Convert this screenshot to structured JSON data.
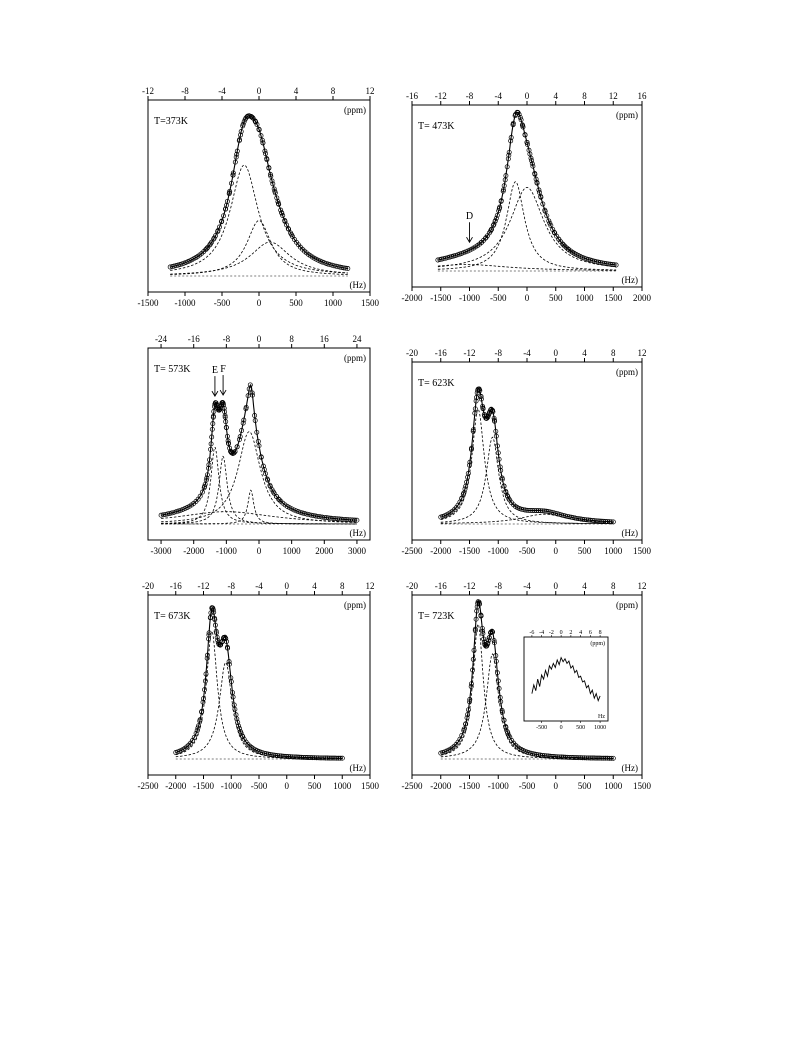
{
  "chart_data": [
    {
      "type": "line",
      "temperature_label": "T=373K",
      "top_axis_unit": "(ppm)",
      "bottom_axis_unit": "(Hz)",
      "hz_ticks": [
        -1500,
        -1000,
        -500,
        0,
        500,
        1000,
        1500
      ],
      "ppm_ticks": [
        -12,
        -8,
        -4,
        0,
        4,
        8,
        12
      ],
      "hz_range": [
        -1500,
        1500
      ],
      "ppm_range": [
        -12,
        12
      ],
      "fit_components": [
        {
          "center": -200,
          "width": 230,
          "amp": 0.72
        },
        {
          "center": 0,
          "width": 200,
          "amp": 0.36
        },
        {
          "center": 150,
          "width": 330,
          "amp": 0.22
        }
      ],
      "data_range": [
        -1200,
        1200
      ],
      "annotations": []
    },
    {
      "type": "line",
      "temperature_label": "T= 473K",
      "top_axis_unit": "(ppm)",
      "bottom_axis_unit": "(Hz)",
      "hz_ticks": [
        -2000,
        -1500,
        -1000,
        -500,
        0,
        500,
        1000,
        1500,
        2000
      ],
      "ppm_ticks": [
        -16,
        -12,
        -8,
        -4,
        0,
        4,
        8,
        12,
        16
      ],
      "hz_range": [
        -2000,
        2000
      ],
      "ppm_range": [
        -16,
        16
      ],
      "fit_components": [
        {
          "center": -1050,
          "width": 900,
          "amp": 0.045
        },
        {
          "center": -200,
          "width": 190,
          "amp": 0.62
        },
        {
          "center": 0,
          "width": 360,
          "amp": 0.58
        }
      ],
      "data_range": [
        -1550,
        1550
      ],
      "annotations": [
        {
          "text": "D",
          "x": -1000
        }
      ]
    },
    {
      "type": "line",
      "temperature_label": "T= 573K",
      "top_axis_unit": "(ppm)",
      "bottom_axis_unit": "(Hz)",
      "hz_ticks": [
        -3000,
        -2000,
        -1000,
        0,
        1000,
        2000,
        3000
      ],
      "ppm_ticks": [
        -24,
        -16,
        -8,
        0,
        8,
        16,
        24
      ],
      "hz_range": [
        -3400,
        3400
      ],
      "ppm_range": [
        -27.2,
        27.2
      ],
      "fit_components": [
        {
          "center": -1350,
          "width": 150,
          "amp": 0.5
        },
        {
          "center": -1100,
          "width": 150,
          "amp": 0.44
        },
        {
          "center": -300,
          "width": 420,
          "amp": 0.6
        },
        {
          "center": -250,
          "width": 110,
          "amp": 0.22
        },
        {
          "center": -1000,
          "width": 1800,
          "amp": 0.08
        }
      ],
      "data_range": [
        -3000,
        3000
      ],
      "annotations": [
        {
          "text": "E",
          "x": -1350
        },
        {
          "text": "F",
          "x": -1100
        }
      ]
    },
    {
      "type": "line",
      "temperature_label": "T= 623K",
      "top_axis_unit": "(ppm)",
      "bottom_axis_unit": "(Hz)",
      "hz_ticks": [
        -2500,
        -2000,
        -1500,
        -1000,
        -500,
        0,
        500,
        1000,
        1500
      ],
      "ppm_ticks": [
        -20,
        -16,
        -12,
        -8,
        -4,
        0,
        4,
        8,
        12
      ],
      "hz_range": [
        -2500,
        1500
      ],
      "ppm_range": [
        -20,
        12
      ],
      "fit_components": [
        {
          "center": -1350,
          "width": 130,
          "amp": 0.82
        },
        {
          "center": -1100,
          "width": 130,
          "amp": 0.62
        },
        {
          "center": -200,
          "width": 500,
          "amp": 0.07
        }
      ],
      "data_range": [
        -2000,
        1000
      ],
      "annotations": []
    },
    {
      "type": "line",
      "temperature_label": "T= 673K",
      "top_axis_unit": "(ppm)",
      "bottom_axis_unit": "(Hz)",
      "hz_ticks": [
        -2500,
        -2000,
        -1500,
        -1000,
        -500,
        0,
        500,
        1000,
        1500
      ],
      "ppm_ticks": [
        -20,
        -16,
        -12,
        -8,
        -4,
        0,
        4,
        8,
        12
      ],
      "hz_range": [
        -2500,
        1500
      ],
      "ppm_range": [
        -20,
        12
      ],
      "fit_components": [
        {
          "center": -1350,
          "width": 120,
          "amp": 0.9
        },
        {
          "center": -1100,
          "width": 140,
          "amp": 0.68
        }
      ],
      "data_range": [
        -2000,
        1000
      ],
      "annotations": []
    },
    {
      "type": "line",
      "temperature_label": "T= 723K",
      "top_axis_unit": "(ppm)",
      "bottom_axis_unit": "(Hz)",
      "hz_ticks": [
        -2500,
        -2000,
        -1500,
        -1000,
        -500,
        0,
        500,
        1000,
        1500
      ],
      "ppm_ticks": [
        -20,
        -16,
        -12,
        -8,
        -4,
        0,
        4,
        8,
        12
      ],
      "hz_range": [
        -2500,
        1500
      ],
      "ppm_range": [
        -20,
        12
      ],
      "fit_components": [
        {
          "center": -1350,
          "width": 110,
          "amp": 0.95
        },
        {
          "center": -1100,
          "width": 130,
          "amp": 0.74
        }
      ],
      "data_range": [
        -2000,
        1000
      ],
      "annotations": [],
      "inset": {
        "type": "line",
        "top_axis_unit": "(ppm)",
        "bottom_axis_unit": "Hz",
        "hz_ticks": [
          -500,
          0,
          500,
          1000
        ],
        "ppm_ticks": [
          -6,
          -4,
          -2,
          0,
          2,
          4,
          6,
          8
        ],
        "x": [
          -750,
          -700,
          -650,
          -600,
          -550,
          -500,
          -450,
          -400,
          -350,
          -300,
          -250,
          -200,
          -150,
          -100,
          -50,
          0,
          50,
          100,
          150,
          200,
          250,
          300,
          350,
          400,
          450,
          500,
          550,
          600,
          650,
          700,
          750,
          800,
          850,
          900,
          950,
          1000
        ],
        "y": [
          0.3,
          0.45,
          0.35,
          0.55,
          0.42,
          0.62,
          0.55,
          0.7,
          0.6,
          0.78,
          0.72,
          0.82,
          0.75,
          0.88,
          0.8,
          0.92,
          0.85,
          0.9,
          0.82,
          0.86,
          0.74,
          0.78,
          0.66,
          0.7,
          0.58,
          0.6,
          0.5,
          0.52,
          0.4,
          0.44,
          0.3,
          0.36,
          0.22,
          0.3,
          0.18,
          0.26
        ]
      }
    }
  ]
}
